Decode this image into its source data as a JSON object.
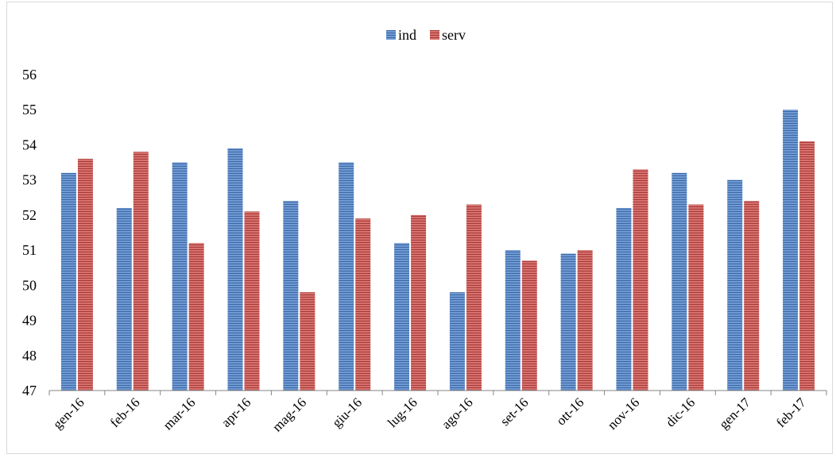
{
  "chart_data": {
    "type": "bar",
    "title": "",
    "xlabel": "",
    "ylabel": "",
    "categories": [
      "gen-16",
      "feb-16",
      "mar-16",
      "apr-16",
      "mag-16",
      "giu-16",
      "lug-16",
      "ago-16",
      "set-16",
      "ott-16",
      "nov-16",
      "dic-16",
      "gen-17",
      "feb-17"
    ],
    "series": [
      {
        "name": "ind",
        "color": "#4f81bd",
        "values": [
          53.2,
          52.2,
          53.5,
          53.9,
          52.4,
          53.5,
          51.2,
          49.8,
          51.0,
          50.9,
          52.2,
          53.2,
          53.0,
          55.0
        ]
      },
      {
        "name": "serv",
        "color": "#c0504d",
        "values": [
          53.6,
          53.8,
          51.2,
          52.1,
          49.8,
          51.9,
          52.0,
          52.3,
          50.7,
          51.0,
          53.3,
          52.3,
          52.4,
          54.1
        ]
      }
    ],
    "ylim": [
      47,
      56
    ],
    "yticks": [
      47,
      48,
      49,
      50,
      51,
      52,
      53,
      54,
      55,
      56
    ],
    "grid": false,
    "legend_position": "top-center"
  }
}
